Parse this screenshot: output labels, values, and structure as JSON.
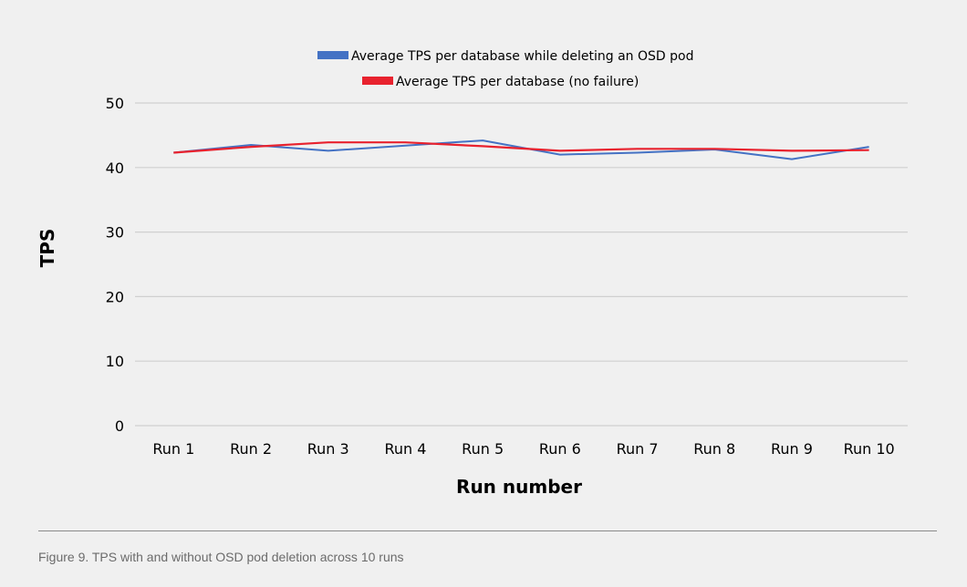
{
  "caption": "Figure 9. TPS with and without OSD pod deletion across 10 runs",
  "chart_data": {
    "type": "line",
    "title": "",
    "xlabel": "Run number",
    "ylabel": "TPS",
    "categories": [
      "Run 1",
      "Run 2",
      "Run 3",
      "Run 4",
      "Run 5",
      "Run 6",
      "Run 7",
      "Run 8",
      "Run 9",
      "Run 10"
    ],
    "ylim": [
      0,
      50
    ],
    "yticks": [
      0,
      10,
      20,
      30,
      40,
      50
    ],
    "grid": true,
    "legend_position": "top-center",
    "series": [
      {
        "name": "Average TPS per database while deleting an OSD pod",
        "color": "#4472c4",
        "values": [
          42.3,
          43.5,
          42.6,
          43.4,
          44.2,
          42.0,
          42.3,
          42.8,
          41.3,
          43.2
        ]
      },
      {
        "name": "Average TPS per database (no failure)",
        "color": "#e8222e",
        "values": [
          42.3,
          43.2,
          43.9,
          43.9,
          43.3,
          42.6,
          42.9,
          42.9,
          42.6,
          42.7
        ]
      }
    ]
  }
}
